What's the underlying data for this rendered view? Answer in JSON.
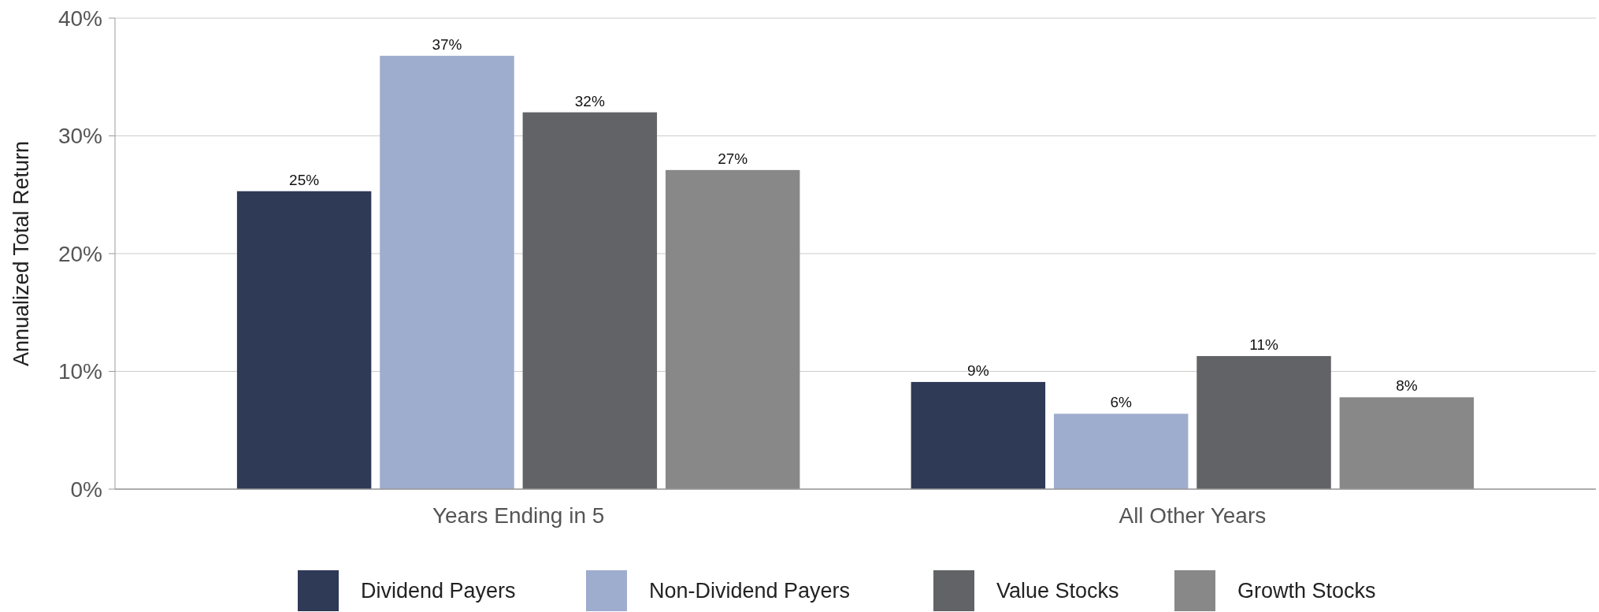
{
  "chart_data": {
    "type": "bar",
    "ylabel": "Annualized Total Return",
    "categories": [
      "Years Ending in 5",
      "All Other Years"
    ],
    "series": [
      {
        "name": "Dividend Payers",
        "color": "#2e3a56",
        "values": [
          25.3,
          9.1
        ],
        "value_labels": [
          "25%",
          "9%"
        ]
      },
      {
        "name": "Non-Dividend Payers",
        "color": "#9eacce",
        "values": [
          36.8,
          6.4
        ],
        "value_labels": [
          "37%",
          "6%"
        ]
      },
      {
        "name": "Value Stocks",
        "color": "#626366",
        "values": [
          32,
          11.3
        ],
        "value_labels": [
          "32%",
          "11%"
        ]
      },
      {
        "name": "Growth Stocks",
        "color": "#888888",
        "values": [
          27.1,
          7.8
        ],
        "value_labels": [
          "27%",
          "8%"
        ]
      }
    ],
    "ylim": [
      0,
      40
    ],
    "yticks": [
      {
        "value": 0,
        "label": "0%"
      },
      {
        "value": 10,
        "label": "10%"
      },
      {
        "value": 20,
        "label": "20%"
      },
      {
        "value": 30,
        "label": "30%"
      },
      {
        "value": 40,
        "label": "40%"
      }
    ],
    "grid": "y",
    "legend": "bottom"
  }
}
